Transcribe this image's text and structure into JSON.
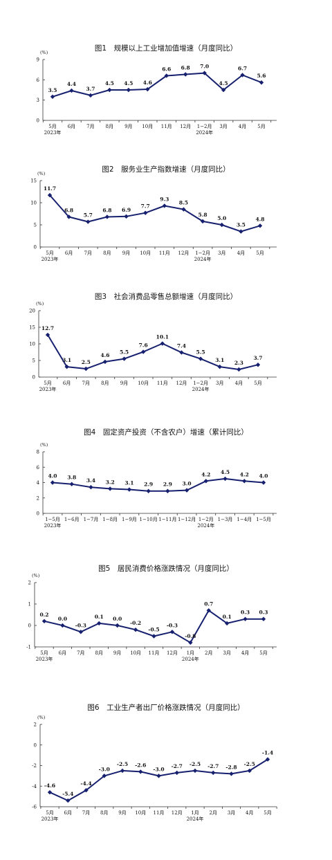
{
  "colors": {
    "series": "#16206e",
    "axis": "#333333",
    "text": "#111111"
  },
  "chart_data": [
    {
      "type": "line",
      "title": "图1　规模以上工业增加值增速（月度同比）",
      "unit": "(%)",
      "categories": [
        "5月",
        "6月",
        "7月",
        "8月",
        "9月",
        "10月",
        "11月",
        "12月",
        "1−2月",
        "3月",
        "4月",
        "5月"
      ],
      "year_labels": [
        {
          "index": 0,
          "text": "2023年"
        },
        {
          "index": 8,
          "text": "2024年"
        }
      ],
      "values": [
        3.5,
        4.4,
        3.7,
        4.5,
        4.5,
        4.6,
        6.6,
        6.8,
        7.0,
        4.5,
        6.7,
        5.6
      ],
      "value_labels": [
        "3.5",
        "4.4",
        "3.7",
        "4.5",
        "4.5",
        "4.6",
        "6.6",
        "6.8",
        "7.0",
        "4.5",
        "6.7",
        "5.6"
      ],
      "yticks": [
        0,
        3,
        6,
        9
      ],
      "ylim": [
        0,
        9
      ],
      "grid": false
    },
    {
      "type": "line",
      "title": "图2　服务业生产指数增速（月度同比）",
      "unit": "(%)",
      "categories": [
        "5月",
        "6月",
        "7月",
        "8月",
        "9月",
        "10月",
        "11月",
        "12月",
        "1−2月",
        "3月",
        "4月",
        "5月"
      ],
      "year_labels": [
        {
          "index": 0,
          "text": "2023年"
        },
        {
          "index": 8,
          "text": "2024年"
        }
      ],
      "values": [
        11.7,
        6.8,
        5.7,
        6.8,
        6.9,
        7.7,
        9.3,
        8.5,
        5.8,
        5.0,
        3.5,
        4.8
      ],
      "value_labels": [
        "11.7",
        "6.8",
        "5.7",
        "6.8",
        "6.9",
        "7.7",
        "9.3",
        "8.5",
        "5.8",
        "5.0",
        "3.5",
        "4.8"
      ],
      "yticks": [
        0,
        5,
        10,
        15
      ],
      "ylim": [
        0,
        15
      ],
      "grid": false
    },
    {
      "type": "line",
      "title": "图3　社会消费品零售总额增速（月度同比）",
      "unit": "(%)",
      "categories": [
        "5月",
        "6月",
        "7月",
        "8月",
        "9月",
        "10月",
        "11月",
        "12月",
        "1−2月",
        "3月",
        "4月",
        "5月"
      ],
      "year_labels": [
        {
          "index": 0,
          "text": "2023年"
        },
        {
          "index": 8,
          "text": "2024年"
        }
      ],
      "values": [
        12.7,
        3.1,
        2.5,
        4.6,
        5.5,
        7.6,
        10.1,
        7.4,
        5.5,
        3.1,
        2.3,
        3.7
      ],
      "value_labels": [
        "12.7",
        "3.1",
        "2.5",
        "4.6",
        "5.5",
        "7.6",
        "10.1",
        "7.4",
        "5.5",
        "3.1",
        "2.3",
        "3.7"
      ],
      "yticks": [
        0,
        5,
        10,
        15,
        20
      ],
      "ylim": [
        0,
        20
      ],
      "grid": false
    },
    {
      "type": "line",
      "title": "图4　固定资产投资（不含农户）增速（累计同比）",
      "unit": "(%)",
      "categories": [
        "1−5月",
        "1−6月",
        "1−7月",
        "1−8月",
        "1−9月",
        "1−10月",
        "1−11月",
        "1−12月",
        "1−2月",
        "1−3月",
        "1−4月",
        "1−5月"
      ],
      "year_labels": [
        {
          "index": 0,
          "text": "2023年"
        },
        {
          "index": 8,
          "text": "2024年"
        }
      ],
      "values": [
        4.0,
        3.8,
        3.4,
        3.2,
        3.1,
        2.9,
        2.9,
        3.0,
        4.2,
        4.5,
        4.2,
        4.0
      ],
      "value_labels": [
        "4.0",
        "3.8",
        "3.4",
        "3.2",
        "3.1",
        "2.9",
        "2.9",
        "3.0",
        "4.2",
        "4.5",
        "4.2",
        "4.0"
      ],
      "yticks": [
        0,
        2,
        4,
        6,
        8
      ],
      "ylim": [
        0,
        8
      ],
      "grid": false
    },
    {
      "type": "line",
      "title": "图5　居民消费价格涨跌情况（月度同比）",
      "unit": "(%)",
      "categories": [
        "5月",
        "6月",
        "7月",
        "8月",
        "9月",
        "10月",
        "11月",
        "12月",
        "1月",
        "2月",
        "3月",
        "4月",
        "5月"
      ],
      "year_labels": [
        {
          "index": 0,
          "text": "2023年"
        },
        {
          "index": 8,
          "text": "2024年"
        }
      ],
      "values": [
        0.2,
        0.0,
        -0.3,
        0.1,
        0.0,
        -0.2,
        -0.5,
        -0.3,
        -0.8,
        0.7,
        0.1,
        0.3,
        0.3
      ],
      "value_labels": [
        "0.2",
        "0.0",
        "-0.3",
        "0.1",
        "0.0",
        "-0.2",
        "-0.5",
        "-0.3",
        "-0.8",
        "0.7",
        "0.1",
        "0.3",
        "0.3"
      ],
      "yticks": [
        -1,
        0,
        1,
        2
      ],
      "ylim": [
        -1,
        2
      ],
      "grid": false
    },
    {
      "type": "line",
      "title": "图6　工业生产者出厂价格涨跌情况（月度同比）",
      "unit": "(%)",
      "categories": [
        "5月",
        "6月",
        "7月",
        "8月",
        "9月",
        "10月",
        "11月",
        "12月",
        "1月",
        "2月",
        "3月",
        "4月",
        "5月"
      ],
      "year_labels": [
        {
          "index": 0,
          "text": "2023年"
        },
        {
          "index": 8,
          "text": "2024年"
        }
      ],
      "values": [
        -4.6,
        -5.4,
        -4.4,
        -3.0,
        -2.5,
        -2.6,
        -3.0,
        -2.7,
        -2.5,
        -2.7,
        -2.8,
        -2.5,
        -1.4
      ],
      "value_labels": [
        "-4.6",
        "-5.4",
        "-4.4",
        "-3.0",
        "-2.5",
        "-2.6",
        "-3.0",
        "-2.7",
        "-2.5",
        "-2.7",
        "-2.8",
        "-2.5",
        "-1.4"
      ],
      "yticks": [
        -6,
        -4,
        -2,
        0,
        2
      ],
      "ylim": [
        -6,
        2
      ],
      "grid": false
    }
  ]
}
